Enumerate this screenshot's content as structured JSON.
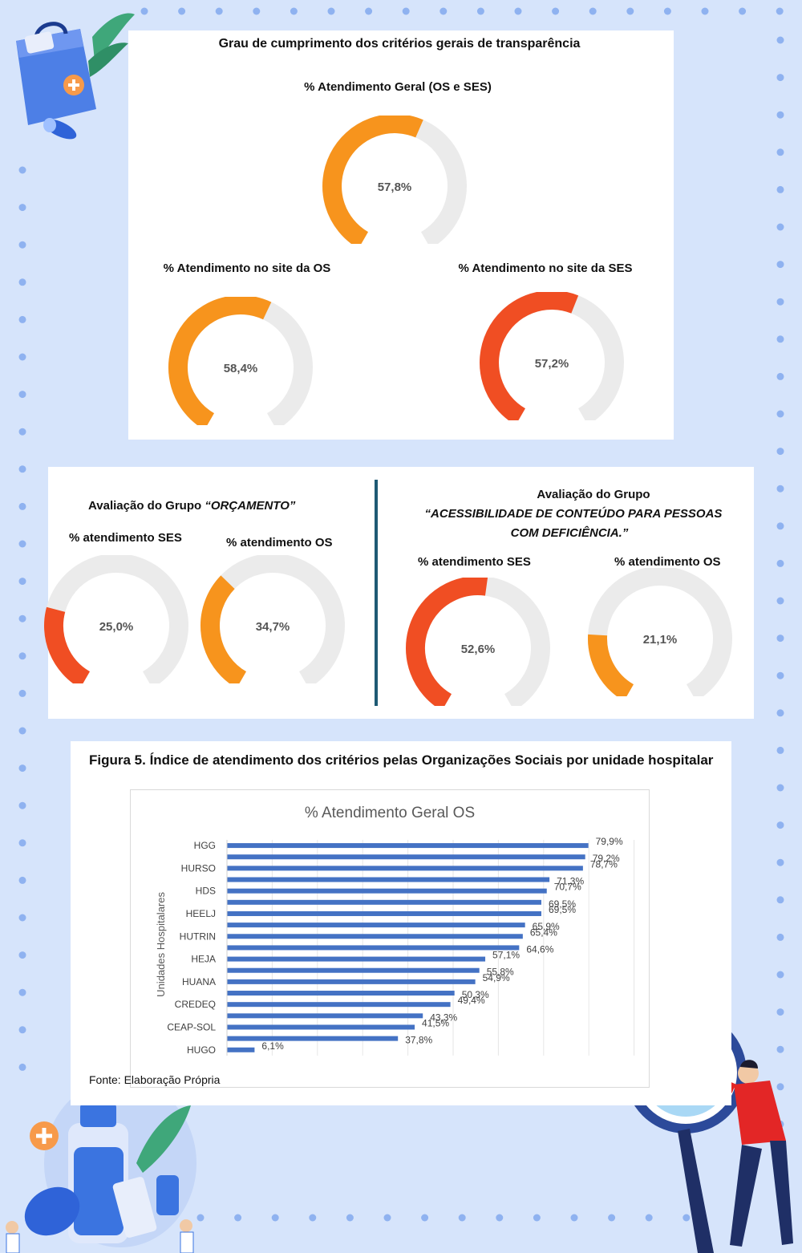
{
  "panel1": {
    "title": "Grau de cumprimento dos critérios gerais de transparência",
    "gauges": [
      {
        "label": "% Atendimento Geral (OS e SES)",
        "value": 57.8,
        "value_text": "57,8%",
        "color": "#f7941d"
      },
      {
        "label": "% Atendimento no site da OS",
        "value": 58.4,
        "value_text": "58,4%",
        "color": "#f7941d"
      },
      {
        "label": "% Atendimento no site da SES",
        "value": 57.2,
        "value_text": "57,2%",
        "color": "#f04e23"
      }
    ]
  },
  "panel2": {
    "left_title_prefix": "Avaliação do Grupo ",
    "left_title_group": "“ORÇAMENTO”",
    "right_title_line1": "Avaliação do Grupo",
    "right_title_line2": "“ACESSIBILIDADE DE CONTEÚDO PARA PESSOAS",
    "right_title_line3": "COM   DEFICIÊNCIA.”",
    "gauges": [
      {
        "label": "% atendimento SES",
        "value": 25.0,
        "value_text": "25,0%",
        "color": "#f04e23"
      },
      {
        "label": "% atendimento OS",
        "value": 34.7,
        "value_text": "34,7%",
        "color": "#f7941d"
      },
      {
        "label": "% atendimento SES",
        "value": 52.6,
        "value_text": "52,6%",
        "color": "#f04e23"
      },
      {
        "label": "% atendimento OS",
        "value": 21.1,
        "value_text": "21,1%",
        "color": "#f7941d"
      }
    ]
  },
  "panel3": {
    "figure_title": "Figura 5. Índice de atendimento dos critérios pelas Organizações Sociais por unidade hospitalar",
    "source": "Fonte: Elaboração Própria"
  },
  "chart_data": {
    "type": "bar",
    "orientation": "horizontal",
    "title": "% Atendimento Geral OS",
    "ylabel": "Unidades Hospitalares",
    "xlim": [
      0,
      100
    ],
    "bar_color": "#4472c4",
    "categories": [
      "HGG",
      "",
      "HURSO",
      "",
      "HDS",
      "",
      "HEELJ",
      "",
      "HUTRIN",
      "",
      "HEJA",
      "",
      "HUANA",
      "",
      "CREDEQ",
      "",
      "CEAP-SOL",
      "",
      "HUGO"
    ],
    "values": [
      79.9,
      79.2,
      78.7,
      71.3,
      70.7,
      69.5,
      69.5,
      65.9,
      65.4,
      64.6,
      57.1,
      55.8,
      54.9,
      50.3,
      49.4,
      43.3,
      41.5,
      37.8,
      6.1
    ],
    "value_labels": [
      "79,9%",
      "79,2%",
      "78,7%",
      "71,3%",
      "70,7%",
      "69,5%",
      "69,5%",
      "65,9%",
      "65,4%",
      "64,6%",
      "57,1%",
      "55,8%",
      "54,9%",
      "50,3%",
      "49,4%",
      "43,3%",
      "41,5%",
      "37,8%",
      "6,1%"
    ],
    "tick_labels": [
      "HGG",
      "HURSO",
      "HDS",
      "HEELJ",
      "HUTRIN",
      "HEJA",
      "HUANA",
      "CREDEQ",
      "CEAP-SOL",
      "HUGO"
    ]
  },
  "colors": {
    "background": "#d6e4fb",
    "dot": "#8fb2f0",
    "gauge_track": "#ebebeb",
    "orange": "#f7941d",
    "red": "#f04e23",
    "divider": "#1e5a74"
  }
}
